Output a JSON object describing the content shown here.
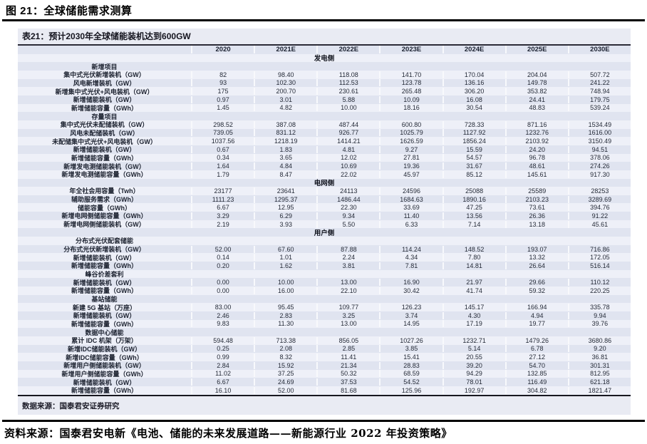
{
  "page": {
    "figure_title": "图 21：全球储能需求测算",
    "report_source_line": "资料来源：国泰君安电新《电池、储能的未来发展道路——新能源行业 2022 年投资策略》"
  },
  "colors": {
    "panel_bg": "#e9ebf3",
    "row_stripe_dark": "#e0e4f0",
    "row_stripe_light": "#eef0f8",
    "rule_black": "#000000"
  },
  "table": {
    "title": "表21：预计2030年全球储能装机达到600GW",
    "source_note": "数据来源：国泰君安证券研究",
    "year_columns": [
      "2020",
      "2021E",
      "2022E",
      "2023E",
      "2024E",
      "2025E",
      "2030E"
    ],
    "rows": [
      {
        "kind": "side",
        "label": "发电侧",
        "values": [
          "",
          "",
          "",
          "",
          "",
          "",
          ""
        ]
      },
      {
        "kind": "group",
        "label": "新增项目",
        "values": [
          "",
          "",
          "",
          "",
          "",
          "",
          ""
        ]
      },
      {
        "kind": "data",
        "label": "集中式光伏新增装机（GW）",
        "values": [
          "82",
          "98.40",
          "118.08",
          "141.70",
          "170.04",
          "204.04",
          "507.72"
        ]
      },
      {
        "kind": "data",
        "label": "风电新增装机（GW）",
        "values": [
          "93",
          "102.30",
          "112.53",
          "123.78",
          "136.16",
          "149.78",
          "241.22"
        ]
      },
      {
        "kind": "data",
        "label": "新增集中式光伏+风电装机（GW）",
        "values": [
          "175",
          "200.70",
          "230.61",
          "265.48",
          "306.20",
          "353.82",
          "748.94"
        ]
      },
      {
        "kind": "data",
        "label": "新增储能装机（GW）",
        "values": [
          "0.97",
          "3.01",
          "5.88",
          "10.09",
          "16.08",
          "24.41",
          "179.75"
        ]
      },
      {
        "kind": "data",
        "label": "新增储能容量（GWh）",
        "values": [
          "1.45",
          "4.82",
          "10.00",
          "18.16",
          "30.54",
          "48.83",
          "539.24"
        ]
      },
      {
        "kind": "group",
        "label": "存量项目",
        "values": [
          "",
          "",
          "",
          "",
          "",
          "",
          ""
        ]
      },
      {
        "kind": "data",
        "label": "集中式光伏未配储装机（GW）",
        "values": [
          "298.52",
          "387.08",
          "487.44",
          "600.80",
          "728.33",
          "871.16",
          "1534.49"
        ]
      },
      {
        "kind": "data",
        "label": "风电未配储装机（GW）",
        "values": [
          "739.05",
          "831.12",
          "926.77",
          "1025.79",
          "1127.92",
          "1232.76",
          "1616.00"
        ]
      },
      {
        "kind": "data",
        "label": "未配储集中式光伏+风电装机（GW）",
        "values": [
          "1037.56",
          "1218.19",
          "1414.21",
          "1626.59",
          "1856.24",
          "2103.92",
          "3150.49"
        ]
      },
      {
        "kind": "data",
        "label": "新增储能装机（GW）",
        "values": [
          "0.67",
          "1.83",
          "4.81",
          "9.27",
          "15.59",
          "24.20",
          "94.51"
        ]
      },
      {
        "kind": "data",
        "label": "新增储能容量（GWh）",
        "values": [
          "0.34",
          "3.65",
          "12.02",
          "27.81",
          "54.57",
          "96.78",
          "378.06"
        ]
      },
      {
        "kind": "data",
        "label": "新增发电测储能装机（GW）",
        "values": [
          "1.64",
          "4.84",
          "10.69",
          "19.36",
          "31.67",
          "48.61",
          "274.26"
        ]
      },
      {
        "kind": "data",
        "label": "新增发电测储能容量（GWh）",
        "values": [
          "1.79",
          "8.47",
          "22.02",
          "45.97",
          "85.12",
          "145.61",
          "917.30"
        ]
      },
      {
        "kind": "side",
        "label": "电网侧",
        "values": [
          "",
          "",
          "",
          "",
          "",
          "",
          ""
        ]
      },
      {
        "kind": "data",
        "label": "年全社会用容量（Twh）",
        "values": [
          "23177",
          "23641",
          "24113",
          "24596",
          "25088",
          "25589",
          "28253"
        ]
      },
      {
        "kind": "data",
        "label": "辅助服务需求（GWh）",
        "values": [
          "1111.23",
          "1295.37",
          "1486.44",
          "1684.63",
          "1890.16",
          "2103.23",
          "3289.69"
        ]
      },
      {
        "kind": "data",
        "label": "储能容量（GWh）",
        "values": [
          "6.67",
          "12.95",
          "22.30",
          "33.69",
          "47.25",
          "73.61",
          "394.76"
        ]
      },
      {
        "kind": "data",
        "label": "新增电网侧储能容量（GWh）",
        "values": [
          "3.29",
          "6.29",
          "9.34",
          "11.40",
          "13.56",
          "26.36",
          "91.22"
        ]
      },
      {
        "kind": "data",
        "label": "新增电网侧储能装机（GW）",
        "values": [
          "2.19",
          "3.93",
          "5.50",
          "6.33",
          "7.14",
          "13.18",
          "45.61"
        ]
      },
      {
        "kind": "side",
        "label": "用户侧",
        "values": [
          "",
          "",
          "",
          "",
          "",
          "",
          ""
        ]
      },
      {
        "kind": "group",
        "label": "分布式光伏配套储能",
        "values": [
          "",
          "",
          "",
          "",
          "",
          "",
          ""
        ]
      },
      {
        "kind": "data",
        "label": "分布式光伏新增装机（GW）",
        "values": [
          "52.00",
          "67.60",
          "87.88",
          "114.24",
          "148.52",
          "193.07",
          "716.86"
        ]
      },
      {
        "kind": "data",
        "label": "新增储能装机（GW）",
        "values": [
          "0.14",
          "1.01",
          "2.24",
          "4.34",
          "7.80",
          "13.32",
          "172.05"
        ]
      },
      {
        "kind": "data",
        "label": "新增储能容量（GWh）",
        "values": [
          "0.20",
          "1.62",
          "3.81",
          "7.81",
          "14.81",
          "26.64",
          "516.14"
        ]
      },
      {
        "kind": "group",
        "label": "峰谷价差套利",
        "values": [
          "",
          "",
          "",
          "",
          "",
          "",
          ""
        ]
      },
      {
        "kind": "data",
        "label": "新增储能装机（GW）",
        "values": [
          "0.00",
          "10.00",
          "13.00",
          "16.90",
          "21.97",
          "29.66",
          "110.12"
        ]
      },
      {
        "kind": "data",
        "label": "新增储能容量（GWh）",
        "values": [
          "0.00",
          "16.00",
          "22.10",
          "30.42",
          "41.74",
          "59.32",
          "220.25"
        ]
      },
      {
        "kind": "group",
        "label": "基站储能",
        "values": [
          "",
          "",
          "",
          "",
          "",
          "",
          ""
        ]
      },
      {
        "kind": "data",
        "label": "新建 5G 基站（万座）",
        "values": [
          "83.00",
          "95.45",
          "109.77",
          "126.23",
          "145.17",
          "166.94",
          "335.78"
        ]
      },
      {
        "kind": "data",
        "label": "新增储能装机（GW）",
        "values": [
          "2.46",
          "2.83",
          "3.25",
          "3.74",
          "4.30",
          "4.94",
          "9.94"
        ]
      },
      {
        "kind": "data",
        "label": "新增储能容量（GWh）",
        "values": [
          "9.83",
          "11.30",
          "13.00",
          "14.95",
          "17.19",
          "19.77",
          "39.76"
        ]
      },
      {
        "kind": "group",
        "label": "数据中心储能",
        "values": [
          "",
          "",
          "",
          "",
          "",
          "",
          ""
        ]
      },
      {
        "kind": "data",
        "label": "累计 IDC 机架（万架）",
        "values": [
          "594.48",
          "713.38",
          "856.05",
          "1027.26",
          "1232.71",
          "1479.26",
          "3680.86"
        ]
      },
      {
        "kind": "data",
        "label": "新增IDC储能装机（GW）",
        "values": [
          "0.25",
          "2.08",
          "2.85",
          "3.85",
          "5.14",
          "6.78",
          "9.20"
        ]
      },
      {
        "kind": "data",
        "label": "新增IDC储能容量（GWh）",
        "values": [
          "0.99",
          "8.32",
          "11.41",
          "15.41",
          "20.55",
          "27.12",
          "36.81"
        ]
      },
      {
        "kind": "data",
        "label": "新增用户侧储能装机（GW）",
        "values": [
          "2.84",
          "15.92",
          "21.34",
          "28.83",
          "39.20",
          "54.70",
          "301.31"
        ]
      },
      {
        "kind": "data",
        "label": "新增用户侧储能容量（GWh）",
        "values": [
          "11.02",
          "37.25",
          "50.32",
          "68.59",
          "94.29",
          "132.85",
          "812.95"
        ]
      },
      {
        "kind": "data",
        "label": "新增储能装机（GW）",
        "values": [
          "6.67",
          "24.69",
          "37.53",
          "54.52",
          "78.01",
          "116.49",
          "621.18"
        ]
      },
      {
        "kind": "data",
        "label": "新增储能容量（GWh）",
        "values": [
          "16.10",
          "52.00",
          "81.68",
          "125.96",
          "192.97",
          "304.82",
          "1821.47"
        ]
      }
    ]
  }
}
